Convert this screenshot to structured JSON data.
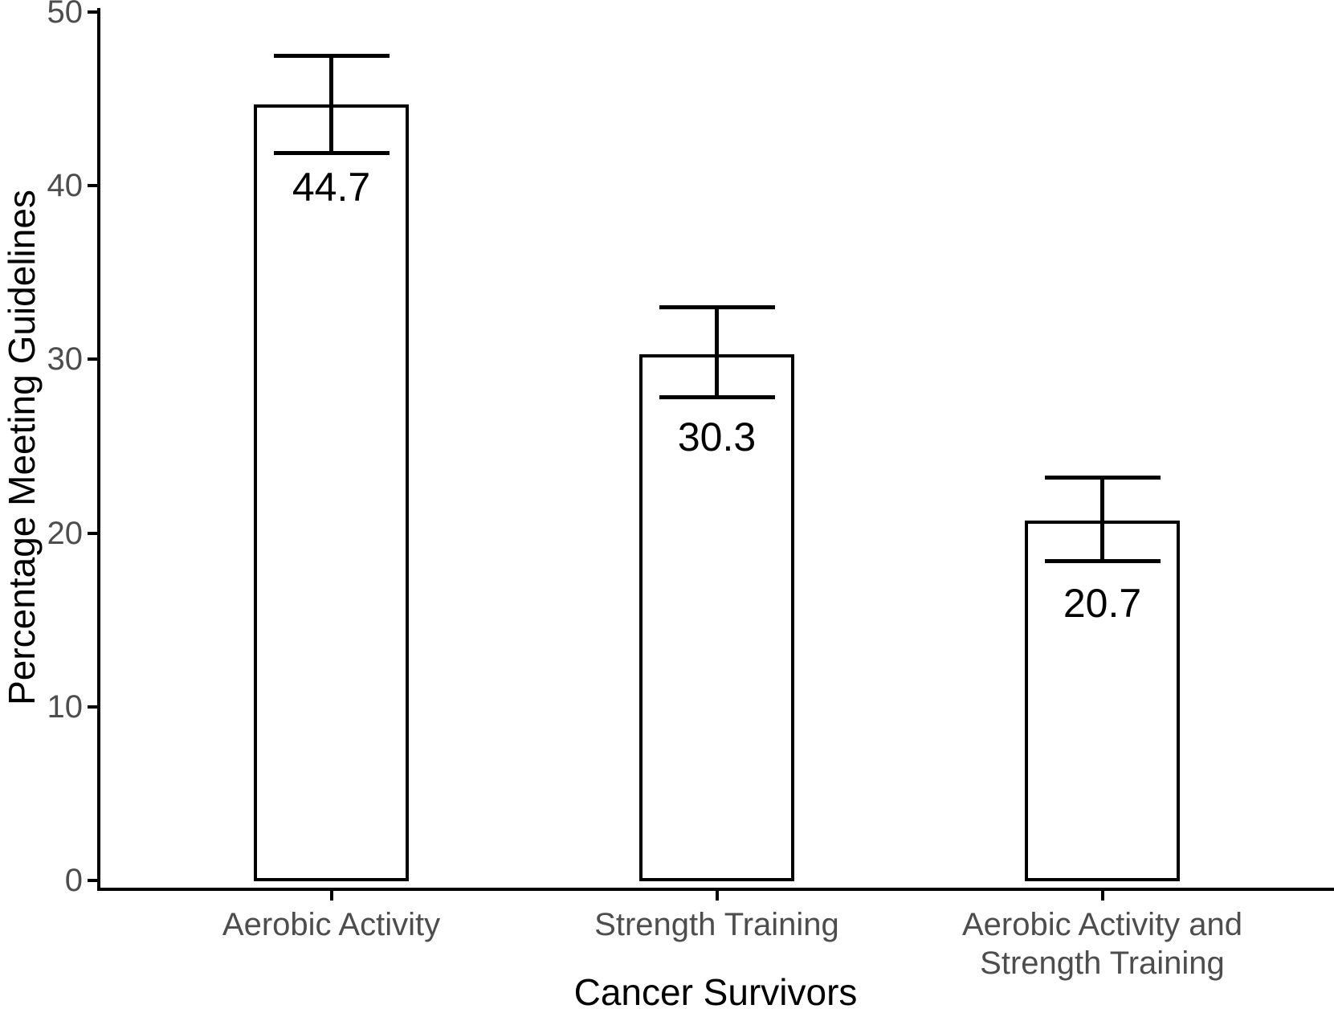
{
  "chart_data": {
    "type": "bar",
    "title": "",
    "xlabel": "Cancer Survivors",
    "ylabel": "Percentage Meeting Guidelines",
    "categories": [
      "Aerobic Activity",
      "Strength Training",
      "Aerobic Activity and Strength Training"
    ],
    "values": [
      44.7,
      30.3,
      20.7
    ],
    "value_labels": [
      "44.7",
      "30.3",
      "20.7"
    ],
    "error_bars": {
      "lower": [
        41.9,
        27.8,
        18.4
      ],
      "upper": [
        47.5,
        33.0,
        23.2
      ]
    },
    "y_ticks": [
      "0",
      "10",
      "20",
      "30",
      "40",
      "50"
    ],
    "y_tick_values": [
      0,
      10,
      20,
      30,
      40,
      50
    ],
    "ylim": [
      0,
      50
    ],
    "grid": "off",
    "legend": "none",
    "bar_fill": "#ffffff",
    "bar_border_color": "#000000",
    "error_bar_color": "#000000",
    "axis_line_color": "#000000",
    "axis_text_color": "#4d4d4d",
    "axis_title_color": "#000000"
  }
}
